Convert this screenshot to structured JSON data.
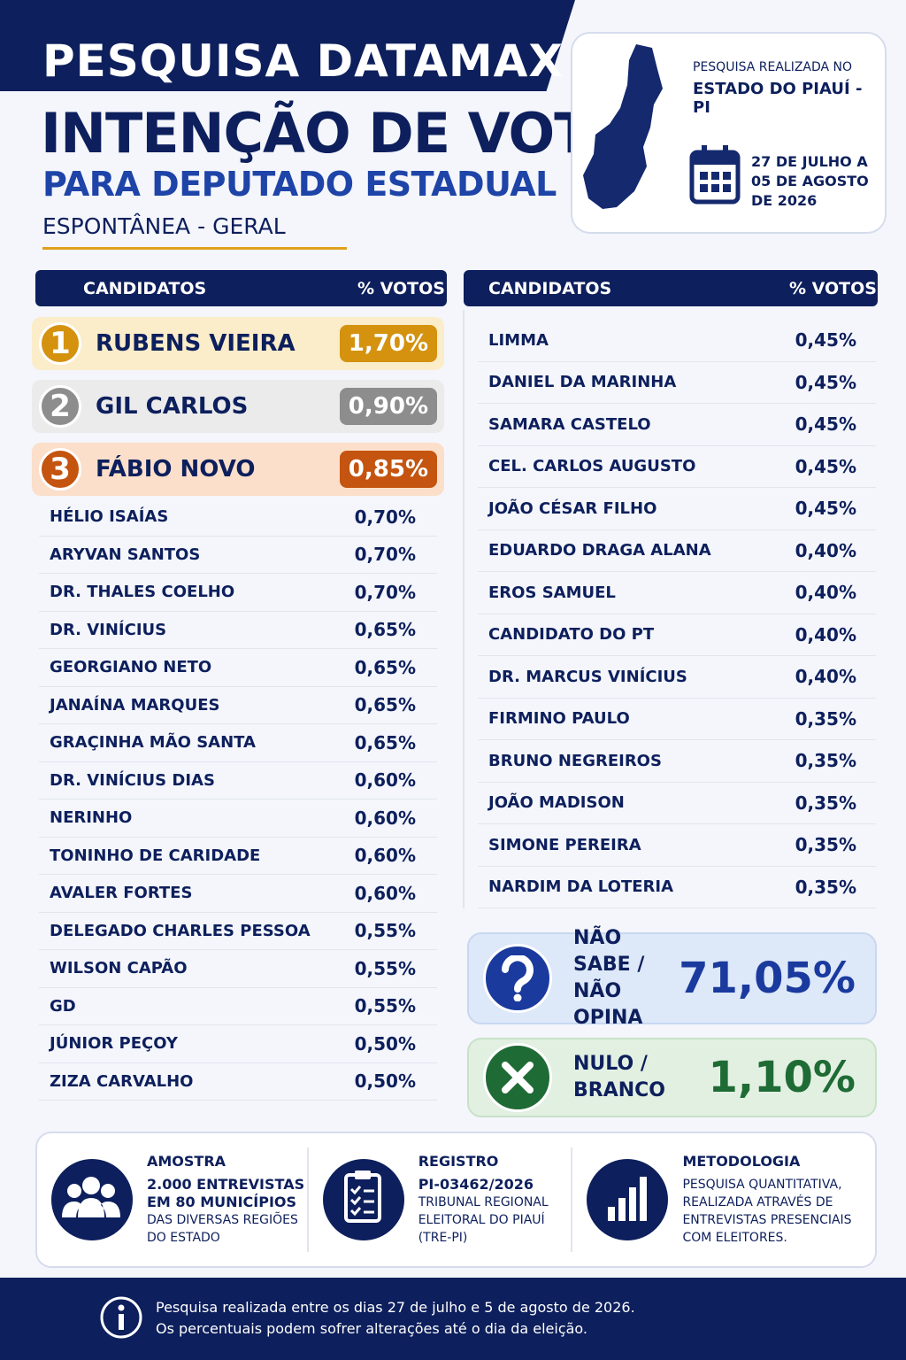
{
  "header": {
    "brand": "PESQUISA DATAMAX",
    "title": "INTENÇÃO DE VOTO",
    "subtitle": "PARA DEPUTADO ESTADUAL",
    "type": "ESPONTÂNEA - GERAL"
  },
  "info": {
    "location_label": "PESQUISA REALIZADA NO",
    "location": "ESTADO DO PIAUÍ - PI",
    "dates": [
      "27 DE JULHO A",
      "05 DE AGOSTO",
      "DE 2026"
    ]
  },
  "left_table": {
    "header": [
      "CANDIDATOS",
      "% VOTOS"
    ],
    "top": [
      {
        "rank": "1",
        "name": "RUBENS VIEIRA",
        "pct": "1,70%"
      },
      {
        "rank": "2",
        "name": "GIL CARLOS",
        "pct": "0,90%"
      },
      {
        "rank": "3",
        "name": "FÁBIO NOVO",
        "pct": "0,85%"
      }
    ],
    "rows": [
      [
        "HÉLIO ISAÍAS",
        "0,70%"
      ],
      [
        "ARYVAN SANTOS",
        "0,70%"
      ],
      [
        "DR. THALES COELHO",
        "0,70%"
      ],
      [
        "DR. VINÍCIUS",
        "0,65%"
      ],
      [
        "GEORGIANO NETO",
        "0,65%"
      ],
      [
        "JANAÍNA MARQUES",
        "0,65%"
      ],
      [
        "GRAÇINHA MÃO SANTA",
        "0,65%"
      ],
      [
        "DR. VINÍCIUS DIAS",
        "0,60%"
      ],
      [
        "NERINHO",
        "0,60%"
      ],
      [
        "TONINHO DE CARIDADE",
        "0,60%"
      ],
      [
        "AVALER FORTES",
        "0,60%"
      ],
      [
        "DELEGADO CHARLES PESSOA",
        "0,55%"
      ],
      [
        "WILSON CAPÃO",
        "0,55%"
      ],
      [
        "GD",
        "0,55%"
      ],
      [
        "JÚNIOR PEÇOY",
        "0,50%"
      ],
      [
        "ZIZA CARVALHO",
        "0,50%"
      ]
    ]
  },
  "right_table": {
    "header": [
      "CANDIDATOS",
      "% VOTOS"
    ],
    "rows": [
      [
        "LIMMA",
        "0,45%"
      ],
      [
        "DANIEL DA MARINHA",
        "0,45%"
      ],
      [
        "SAMARA CASTELO",
        "0,45%"
      ],
      [
        "CEL. CARLOS AUGUSTO",
        "0,45%"
      ],
      [
        "JOÃO CÉSAR FILHO",
        "0,45%"
      ],
      [
        "EDUARDO DRAGA ALANA",
        "0,40%"
      ],
      [
        "EROS SAMUEL",
        "0,40%"
      ],
      [
        "CANDIDATO DO PT",
        "0,40%"
      ],
      [
        "DR. MARCUS VINÍCIUS",
        "0,40%"
      ],
      [
        "FIRMINO PAULO",
        "0,35%"
      ],
      [
        "BRUNO NEGREIROS",
        "0,35%"
      ],
      [
        "JOÃO MADISON",
        "0,35%"
      ],
      [
        "SIMONE PEREIRA",
        "0,35%"
      ],
      [
        "NARDIM DA LOTERIA",
        "0,35%"
      ]
    ]
  },
  "summary": [
    {
      "label": [
        "NÃO SABE /",
        "NÃO OPINA"
      ],
      "value": "71,05%"
    },
    {
      "label": [
        "NULO /",
        "BRANCO"
      ],
      "value": "1,10%"
    }
  ],
  "details": [
    {
      "title": "AMOSTRA",
      "lines": [
        "2.000 ENTREVISTAS",
        "EM 80 MUNICÍPIOS",
        "DAS DIVERSAS REGIÕES",
        "DO ESTADO"
      ]
    },
    {
      "title": "REGISTRO",
      "lines": [
        "PI-03462/2026",
        "TRIBUNAL REGIONAL",
        "ELEITORAL DO PIAUÍ",
        "(TRE-PI)"
      ]
    },
    {
      "title": "METODOLOGIA",
      "lines": [
        "PESQUISA QUANTITATIVA,",
        "REALIZADA ATRAVÉS DE",
        "ENTREVISTAS PRESENCIAIS",
        "COM ELEITORES."
      ]
    }
  ],
  "note": [
    "Pesquisa realizada entre os dias 27 de julho e 5 de agosto de 2026.",
    "Os percentuais podem sofrer alterações até o dia da eleição."
  ]
}
